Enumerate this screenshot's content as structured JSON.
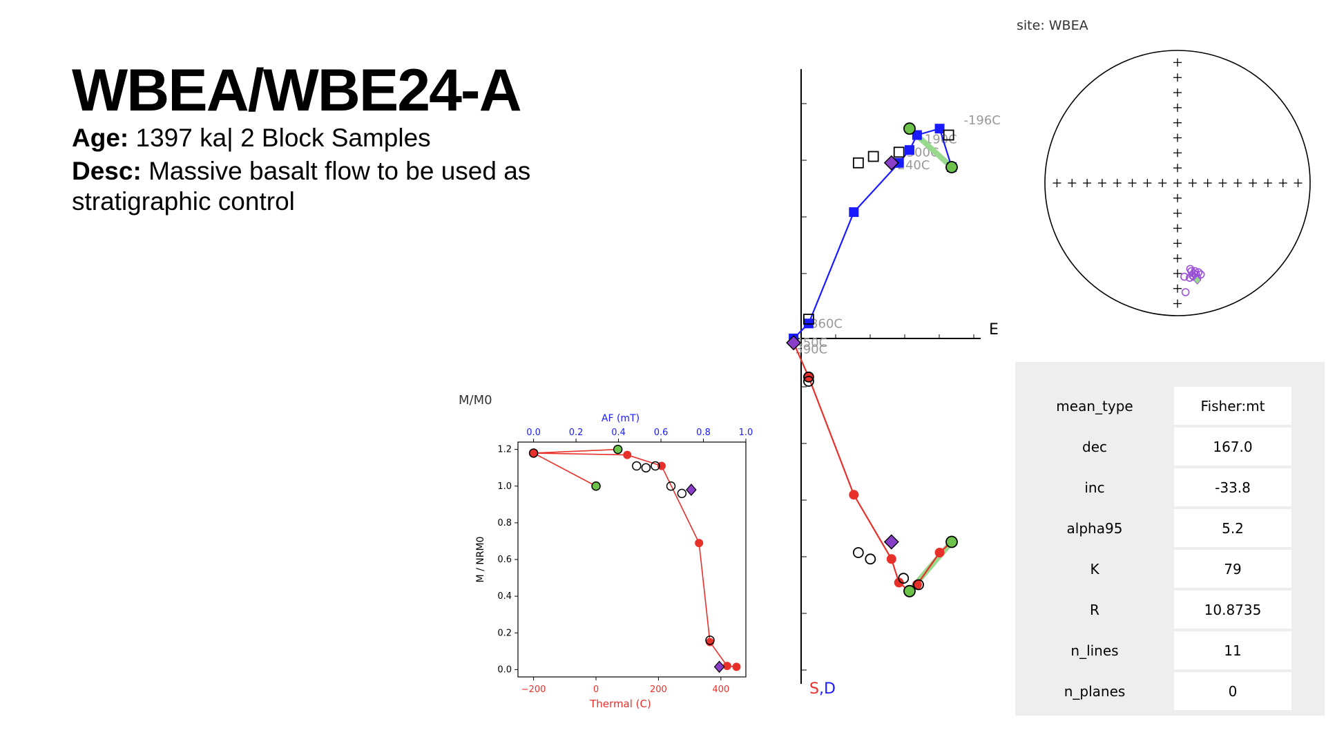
{
  "header": {
    "title": "WBEA/WBE24-A",
    "age_label": "Age:",
    "age_value": "1397 ka| 2 Block Samples",
    "desc_label": "Desc:",
    "desc_value": "Massive basalt flow to be used as stratigraphic control"
  },
  "chart_data": [
    {
      "type": "scatter",
      "name": "demag",
      "corner_label": "M/M0",
      "ylabel": "M / NRM0",
      "xlabel": "Thermal (C)",
      "x2label": "AF (mT)",
      "xlim": [
        -250,
        480
      ],
      "ylim": [
        -0.04,
        1.24
      ],
      "x2lim": [
        0.0,
        1.0
      ],
      "xticks": [
        -200,
        0,
        200,
        400
      ],
      "yticks": [
        0.0,
        0.2,
        0.4,
        0.6,
        0.8,
        1.0,
        1.2
      ],
      "x2ticks": [
        0.0,
        0.2,
        0.4,
        0.6,
        0.8,
        1.0
      ],
      "colors": {
        "thermal": "#e8302a",
        "af": "#1a1aff",
        "green": "#6cc24a",
        "purple": "#8a3fc8"
      },
      "thermal_line": [
        [
          -200,
          1.18
        ],
        [
          100,
          1.17
        ],
        [
          210,
          1.11
        ],
        [
          330,
          0.69
        ],
        [
          365,
          0.15
        ],
        [
          420,
          0.02
        ],
        [
          450,
          0.015
        ]
      ],
      "thermal_left_line": [
        [
          0,
          1.0
        ],
        [
          -200,
          1.18
        ],
        [
          70,
          1.2
        ]
      ],
      "red_points": [
        [
          -200,
          1.18
        ],
        [
          100,
          1.17
        ],
        [
          210,
          1.11
        ],
        [
          330,
          0.69
        ],
        [
          365,
          0.15
        ],
        [
          420,
          0.02
        ],
        [
          450,
          0.015
        ]
      ],
      "open_points": [
        [
          130,
          1.11
        ],
        [
          160,
          1.1
        ],
        [
          190,
          1.11
        ],
        [
          240,
          1.0
        ],
        [
          275,
          0.96
        ],
        [
          365,
          0.16
        ]
      ],
      "green_points": [
        [
          0,
          1.0
        ],
        [
          70,
          1.2
        ]
      ],
      "purple_points": [
        [
          305,
          0.98
        ],
        [
          395,
          0.015
        ]
      ],
      "highlight_red": [
        [
          -200,
          1.18
        ]
      ]
    },
    {
      "type": "scatter",
      "name": "zijderveld",
      "east_label": "E",
      "south_label": "S",
      "down_label": ",D",
      "colors": {
        "horizontal": "#1a1aff",
        "vertical": "#e8302a",
        "fit": "#98d98e"
      },
      "step_labels": [
        "-196C",
        "190C",
        "300C",
        "240C",
        "360C",
        "450C",
        "390C"
      ],
      "x_range": [
        -0.1,
        1.15
      ],
      "y_range": [
        -1.2,
        1.0
      ],
      "horizontal_line": [
        [
          -0.05,
          0.0
        ],
        [
          0.05,
          0.07
        ],
        [
          0.35,
          0.59
        ],
        [
          0.65,
          0.82
        ],
        [
          0.72,
          0.88
        ],
        [
          0.77,
          0.95
        ],
        [
          0.92,
          0.98
        ],
        [
          1.0,
          0.8
        ]
      ],
      "vertical_line": [
        [
          -0.05,
          -0.02
        ],
        [
          0.05,
          -0.18
        ],
        [
          0.35,
          -0.73
        ],
        [
          0.6,
          -1.03
        ],
        [
          0.65,
          -1.14
        ],
        [
          0.72,
          -1.18
        ],
        [
          0.77,
          -1.15
        ],
        [
          0.92,
          -1.0
        ],
        [
          1.0,
          -0.95
        ]
      ],
      "open_horizontal": [
        [
          0.38,
          0.82
        ],
        [
          0.48,
          0.85
        ],
        [
          0.65,
          0.87
        ],
        [
          0.98,
          0.95
        ],
        [
          0.05,
          0.09
        ]
      ],
      "open_vertical": [
        [
          0.05,
          -0.2
        ],
        [
          0.38,
          -1.0
        ],
        [
          0.46,
          -1.03
        ],
        [
          0.68,
          -1.12
        ],
        [
          0.78,
          -1.15
        ],
        [
          0.05,
          -0.18
        ]
      ],
      "green_points": [
        [
          0.72,
          0.98
        ],
        [
          1.0,
          0.8
        ],
        [
          0.72,
          -1.18
        ],
        [
          1.0,
          -0.95
        ]
      ],
      "purple_points": [
        [
          0.6,
          0.82
        ],
        [
          -0.05,
          -0.02
        ],
        [
          0.6,
          -0.95
        ]
      ],
      "green_fit_lines": [
        [
          [
            0.72,
            0.98
          ],
          [
            1.0,
            0.8
          ]
        ],
        [
          [
            0.72,
            -1.18
          ],
          [
            1.0,
            -0.95
          ]
        ]
      ]
    },
    {
      "type": "scatter",
      "name": "equal-area",
      "title": "site: WBEA",
      "colors": {
        "points": "#9a4fd8",
        "mean": "#98d98e"
      },
      "points": [
        [
          1.6,
          -12
        ],
        [
          4,
          -10
        ],
        [
          5,
          -8
        ],
        [
          3,
          -6
        ],
        [
          2,
          -4
        ],
        [
          6,
          -6
        ],
        [
          7,
          -9
        ],
        [
          8,
          -12
        ],
        [
          9,
          -7
        ],
        [
          11,
          -9
        ],
        [
          -3,
          -11
        ],
        [
          -2,
          -25
        ],
        [
          5,
          -11
        ]
      ],
      "mean": [
        8,
        -14
      ]
    }
  ],
  "stats": {
    "rows": [
      {
        "key": "mean_type",
        "value": "Fisher:mt"
      },
      {
        "key": "dec",
        "value": "167.0"
      },
      {
        "key": "inc",
        "value": "-33.8"
      },
      {
        "key": "alpha95",
        "value": "5.2"
      },
      {
        "key": "K",
        "value": "79"
      },
      {
        "key": "R",
        "value": "10.8735"
      },
      {
        "key": "n_lines",
        "value": "11"
      },
      {
        "key": "n_planes",
        "value": "0"
      }
    ]
  }
}
